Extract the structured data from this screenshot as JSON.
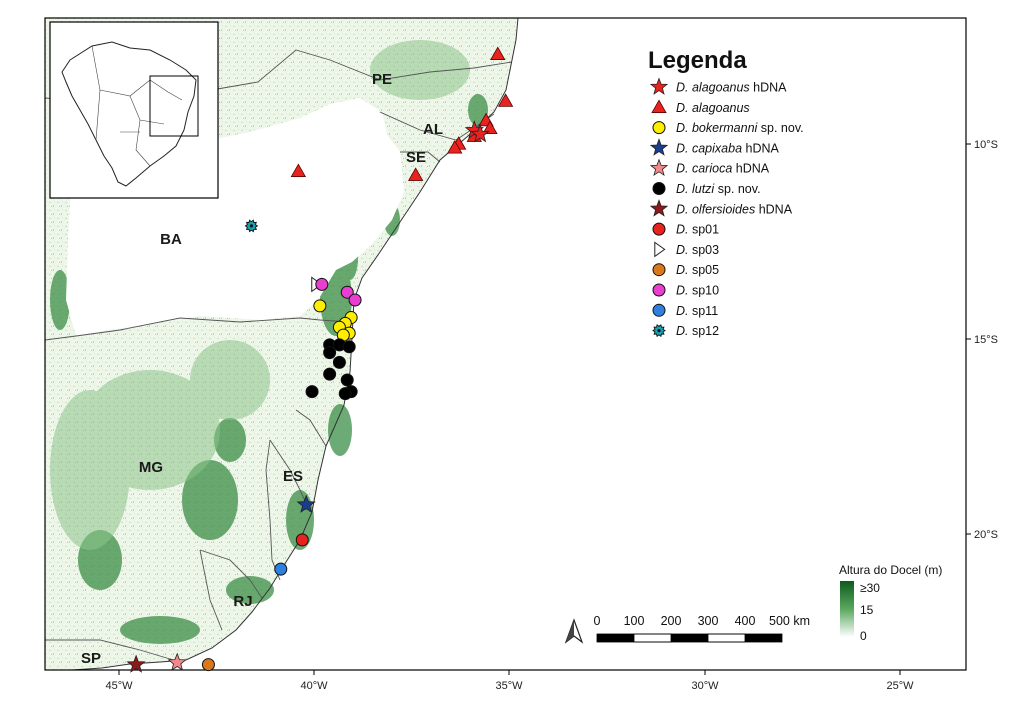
{
  "axes": {
    "lon_ticks": [
      "45°W",
      "40°W",
      "35°W",
      "30°W",
      "25°W"
    ],
    "lat_ticks": [
      "10°S",
      "15°S",
      "20°S"
    ]
  },
  "states": [
    "PE",
    "AL",
    "SE",
    "BA",
    "MG",
    "ES",
    "RJ",
    "SP"
  ],
  "legend": {
    "title": "Legenda",
    "items": [
      {
        "genus": "D.",
        "species": "alagoanus",
        "suffix": "hDNA",
        "species_italic": true,
        "symbol": "star",
        "color": "#e8221e"
      },
      {
        "genus": "D.",
        "species": "alagoanus",
        "suffix": "",
        "species_italic": true,
        "symbol": "triangle",
        "color": "#e8221e"
      },
      {
        "genus": "D.",
        "species": "bokermanni",
        "suffix": "sp. nov.",
        "species_italic": true,
        "symbol": "circle",
        "color": "#ffee00"
      },
      {
        "genus": "D.",
        "species": "capixaba",
        "suffix": "hDNA",
        "species_italic": true,
        "symbol": "star",
        "color": "#1a3d8f"
      },
      {
        "genus": "D.",
        "species": "carioca",
        "suffix": "hDNA",
        "species_italic": true,
        "symbol": "star",
        "color": "#f08a8a"
      },
      {
        "genus": "D.",
        "species": "lutzi",
        "suffix": "sp. nov.",
        "species_italic": true,
        "symbol": "circle",
        "color": "#000000"
      },
      {
        "genus": "D.",
        "species": "olfersioides",
        "suffix": "hDNA",
        "species_italic": true,
        "symbol": "star",
        "color": "#8b1a1a"
      },
      {
        "genus": "D.",
        "species": "sp01",
        "suffix": "",
        "species_italic": false,
        "symbol": "circle",
        "color": "#e8221e"
      },
      {
        "genus": "D.",
        "species": "sp03",
        "suffix": "",
        "species_italic": false,
        "symbol": "tri-right",
        "color": "#ffffff"
      },
      {
        "genus": "D.",
        "species": "sp05",
        "suffix": "",
        "species_italic": false,
        "symbol": "circle",
        "color": "#d9791c"
      },
      {
        "genus": "D.",
        "species": "sp10",
        "suffix": "",
        "species_italic": false,
        "symbol": "circle",
        "color": "#e83fd0"
      },
      {
        "genus": "D.",
        "species": "sp11",
        "suffix": "",
        "species_italic": false,
        "symbol": "circle",
        "color": "#2f7fe0"
      },
      {
        "genus": "D.",
        "species": "sp12",
        "suffix": "",
        "species_italic": false,
        "symbol": "gear",
        "color": "#18a3b5"
      }
    ]
  },
  "scale_bar": {
    "labels": [
      "0",
      "100",
      "200",
      "300",
      "400",
      "500 km"
    ]
  },
  "colorbar": {
    "title": "Altura do Docel (m)",
    "labels": [
      "≥30",
      "15",
      "0"
    ],
    "color_low": "#ffffff",
    "color_high": "#0e5a1e"
  },
  "map_data": {
    "points": [
      {
        "kind": "triangle",
        "color": "#e8221e",
        "lon": -35.3,
        "lat": -7.7
      },
      {
        "kind": "triangle",
        "color": "#e8221e",
        "lon": -35.1,
        "lat": -8.9
      },
      {
        "kind": "triangle",
        "color": "#e8221e",
        "lon": -35.6,
        "lat": -9.4
      },
      {
        "kind": "triangle",
        "color": "#e8221e",
        "lon": -35.5,
        "lat": -9.6
      },
      {
        "kind": "triangle",
        "color": "#e8221e",
        "lon": -35.9,
        "lat": -9.8
      },
      {
        "kind": "triangle",
        "color": "#e8221e",
        "lon": -36.3,
        "lat": -10.0
      },
      {
        "kind": "triangle",
        "color": "#e8221e",
        "lon": -36.4,
        "lat": -10.1
      },
      {
        "kind": "triangle",
        "color": "#e8221e",
        "lon": -37.4,
        "lat": -10.8
      },
      {
        "kind": "triangle",
        "color": "#e8221e",
        "lon": -40.4,
        "lat": -10.7
      },
      {
        "kind": "star",
        "color": "#e8221e",
        "lon": -35.9,
        "lat": -9.65
      },
      {
        "kind": "star",
        "color": "#e8221e",
        "lon": -35.75,
        "lat": -9.75
      },
      {
        "kind": "gear",
        "color": "#18a3b5",
        "lon": -41.6,
        "lat": -12.1
      },
      {
        "kind": "tri-right",
        "color": "#ffffff",
        "lon": -39.95,
        "lat": -13.6
      },
      {
        "kind": "circle",
        "color": "#e83fd0",
        "lon": -39.8,
        "lat": -13.6
      },
      {
        "kind": "circle",
        "color": "#e83fd0",
        "lon": -39.15,
        "lat": -13.8
      },
      {
        "kind": "circle",
        "color": "#e83fd0",
        "lon": -38.95,
        "lat": -14.0
      },
      {
        "kind": "circle",
        "color": "#ffee00",
        "lon": -39.85,
        "lat": -14.15
      },
      {
        "kind": "circle",
        "color": "#ffee00",
        "lon": -39.05,
        "lat": -14.45
      },
      {
        "kind": "circle",
        "color": "#ffee00",
        "lon": -39.2,
        "lat": -14.6
      },
      {
        "kind": "circle",
        "color": "#ffee00",
        "lon": -39.35,
        "lat": -14.7
      },
      {
        "kind": "circle",
        "color": "#ffee00",
        "lon": -39.1,
        "lat": -14.85
      },
      {
        "kind": "circle",
        "color": "#ffee00",
        "lon": -39.25,
        "lat": -14.9
      },
      {
        "kind": "circle",
        "color": "#000000",
        "lon": -39.6,
        "lat": -15.15
      },
      {
        "kind": "circle",
        "color": "#000000",
        "lon": -39.35,
        "lat": -15.15
      },
      {
        "kind": "circle",
        "color": "#000000",
        "lon": -39.1,
        "lat": -15.2
      },
      {
        "kind": "circle",
        "color": "#000000",
        "lon": -39.6,
        "lat": -15.35
      },
      {
        "kind": "circle",
        "color": "#000000",
        "lon": -39.35,
        "lat": -15.6
      },
      {
        "kind": "circle",
        "color": "#000000",
        "lon": -39.6,
        "lat": -15.9
      },
      {
        "kind": "circle",
        "color": "#000000",
        "lon": -39.15,
        "lat": -16.05
      },
      {
        "kind": "circle",
        "color": "#000000",
        "lon": -39.05,
        "lat": -16.35
      },
      {
        "kind": "circle",
        "color": "#000000",
        "lon": -39.2,
        "lat": -16.4
      },
      {
        "kind": "circle",
        "color": "#000000",
        "lon": -40.05,
        "lat": -16.35
      },
      {
        "kind": "star",
        "color": "#1a3d8f",
        "lon": -40.2,
        "lat": -19.25
      },
      {
        "kind": "circle",
        "color": "#e8221e",
        "lon": -40.3,
        "lat": -20.15
      },
      {
        "kind": "circle",
        "color": "#2f7fe0",
        "lon": -40.85,
        "lat": -20.9
      },
      {
        "kind": "star",
        "color": "#8b1a1a",
        "lon": -44.55,
        "lat": -23.35
      },
      {
        "kind": "star",
        "color": "#f08a8a",
        "lon": -43.5,
        "lat": -23.3
      },
      {
        "kind": "circle",
        "color": "#d9791c",
        "lon": -42.7,
        "lat": -23.35
      }
    ]
  }
}
